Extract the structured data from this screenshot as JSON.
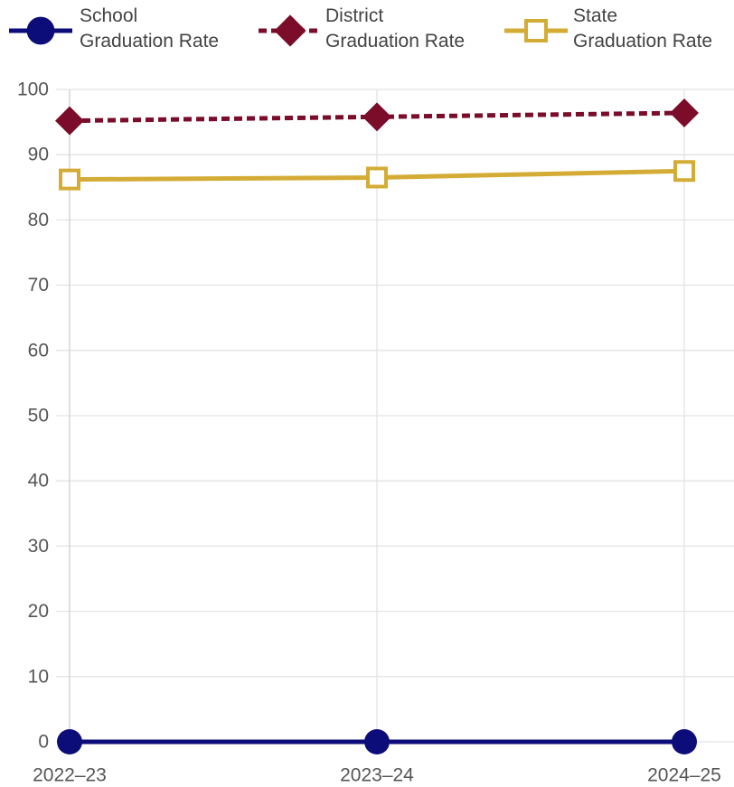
{
  "chart_data": {
    "type": "line",
    "categories": [
      "2022–23",
      "2023–24",
      "2024–25"
    ],
    "ylim": [
      0,
      100
    ],
    "yticks": [
      0,
      10,
      20,
      30,
      40,
      50,
      60,
      70,
      80,
      90,
      100
    ],
    "grid": true,
    "legend_position": "top",
    "series": [
      {
        "name": "School Graduation Rate",
        "name_lines": [
          "School",
          "Graduation Rate"
        ],
        "values": [
          0,
          0,
          0
        ],
        "color": "#0d0d7a",
        "marker": "circle",
        "line_style": "solid"
      },
      {
        "name": "District Graduation Rate",
        "name_lines": [
          "District",
          "Graduation Rate"
        ],
        "values": [
          95.2,
          95.8,
          96.4
        ],
        "color": "#7b0c2a",
        "marker": "diamond",
        "line_style": "dashed"
      },
      {
        "name": "State Graduation Rate",
        "name_lines": [
          "State",
          "Graduation Rate"
        ],
        "values": [
          86.2,
          86.5,
          87.5
        ],
        "color": "#d4ac35",
        "marker": "hollow-square",
        "line_style": "solid"
      }
    ]
  }
}
